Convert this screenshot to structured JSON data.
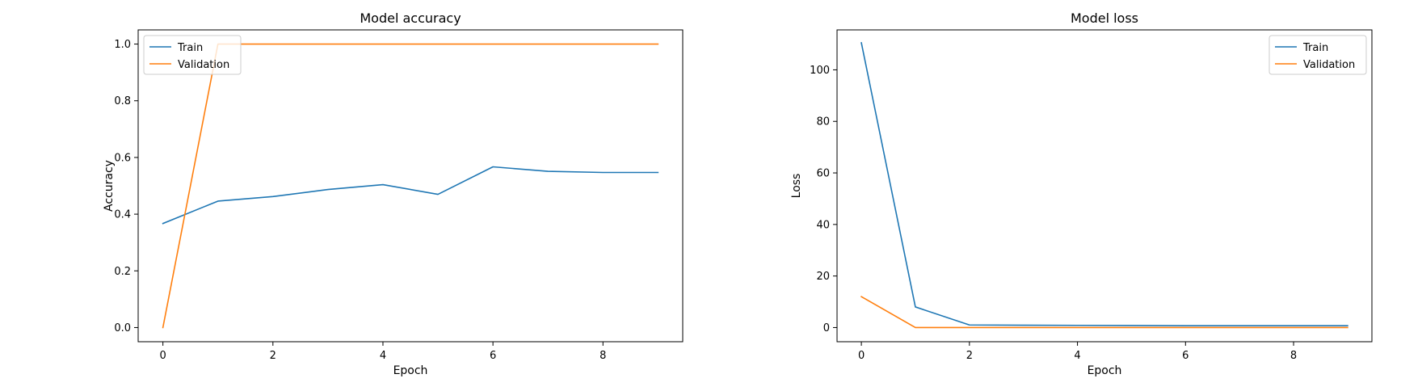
{
  "chart_data": [
    {
      "type": "line",
      "title": "Model accuracy",
      "xlabel": "Epoch",
      "ylabel": "Accuracy",
      "x": [
        0,
        1,
        2,
        3,
        4,
        5,
        6,
        7,
        8,
        9
      ],
      "xlim": [
        -0.45,
        9.45
      ],
      "ylim": [
        -0.05,
        1.05
      ],
      "xticks": [
        0,
        2,
        4,
        6,
        8
      ],
      "yticks": [
        0.0,
        0.2,
        0.4,
        0.6,
        0.8,
        1.0
      ],
      "ytick_decimals": 1,
      "legend_position": "upper-left",
      "grid": false,
      "series": [
        {
          "name": "Train",
          "color": "#1f77b4",
          "values": [
            0.367,
            0.446,
            0.462,
            0.487,
            0.504,
            0.47,
            0.567,
            0.551,
            0.547,
            0.547
          ]
        },
        {
          "name": "Validation",
          "color": "#ff7f0e",
          "values": [
            0.0,
            1.0,
            1.0,
            1.0,
            1.0,
            1.0,
            1.0,
            1.0,
            1.0,
            1.0
          ]
        }
      ]
    },
    {
      "type": "line",
      "title": "Model loss",
      "xlabel": "Epoch",
      "ylabel": "Loss",
      "x": [
        0,
        1,
        2,
        3,
        4,
        5,
        6,
        7,
        8,
        9
      ],
      "xlim": [
        -0.45,
        9.45
      ],
      "ylim": [
        -5.5,
        115.5
      ],
      "xticks": [
        0,
        2,
        4,
        6,
        8
      ],
      "yticks": [
        0,
        20,
        40,
        60,
        80,
        100
      ],
      "ytick_decimals": 0,
      "legend_position": "upper-right",
      "grid": false,
      "series": [
        {
          "name": "Train",
          "color": "#1f77b4",
          "values": [
            110.5,
            8.0,
            1.0,
            0.9,
            0.85,
            0.8,
            0.7,
            0.7,
            0.7,
            0.7
          ]
        },
        {
          "name": "Validation",
          "color": "#ff7f0e",
          "values": [
            12.0,
            0.0,
            0.0,
            0.0,
            0.0,
            0.0,
            0.0,
            0.0,
            0.0,
            0.0
          ]
        }
      ]
    }
  ]
}
